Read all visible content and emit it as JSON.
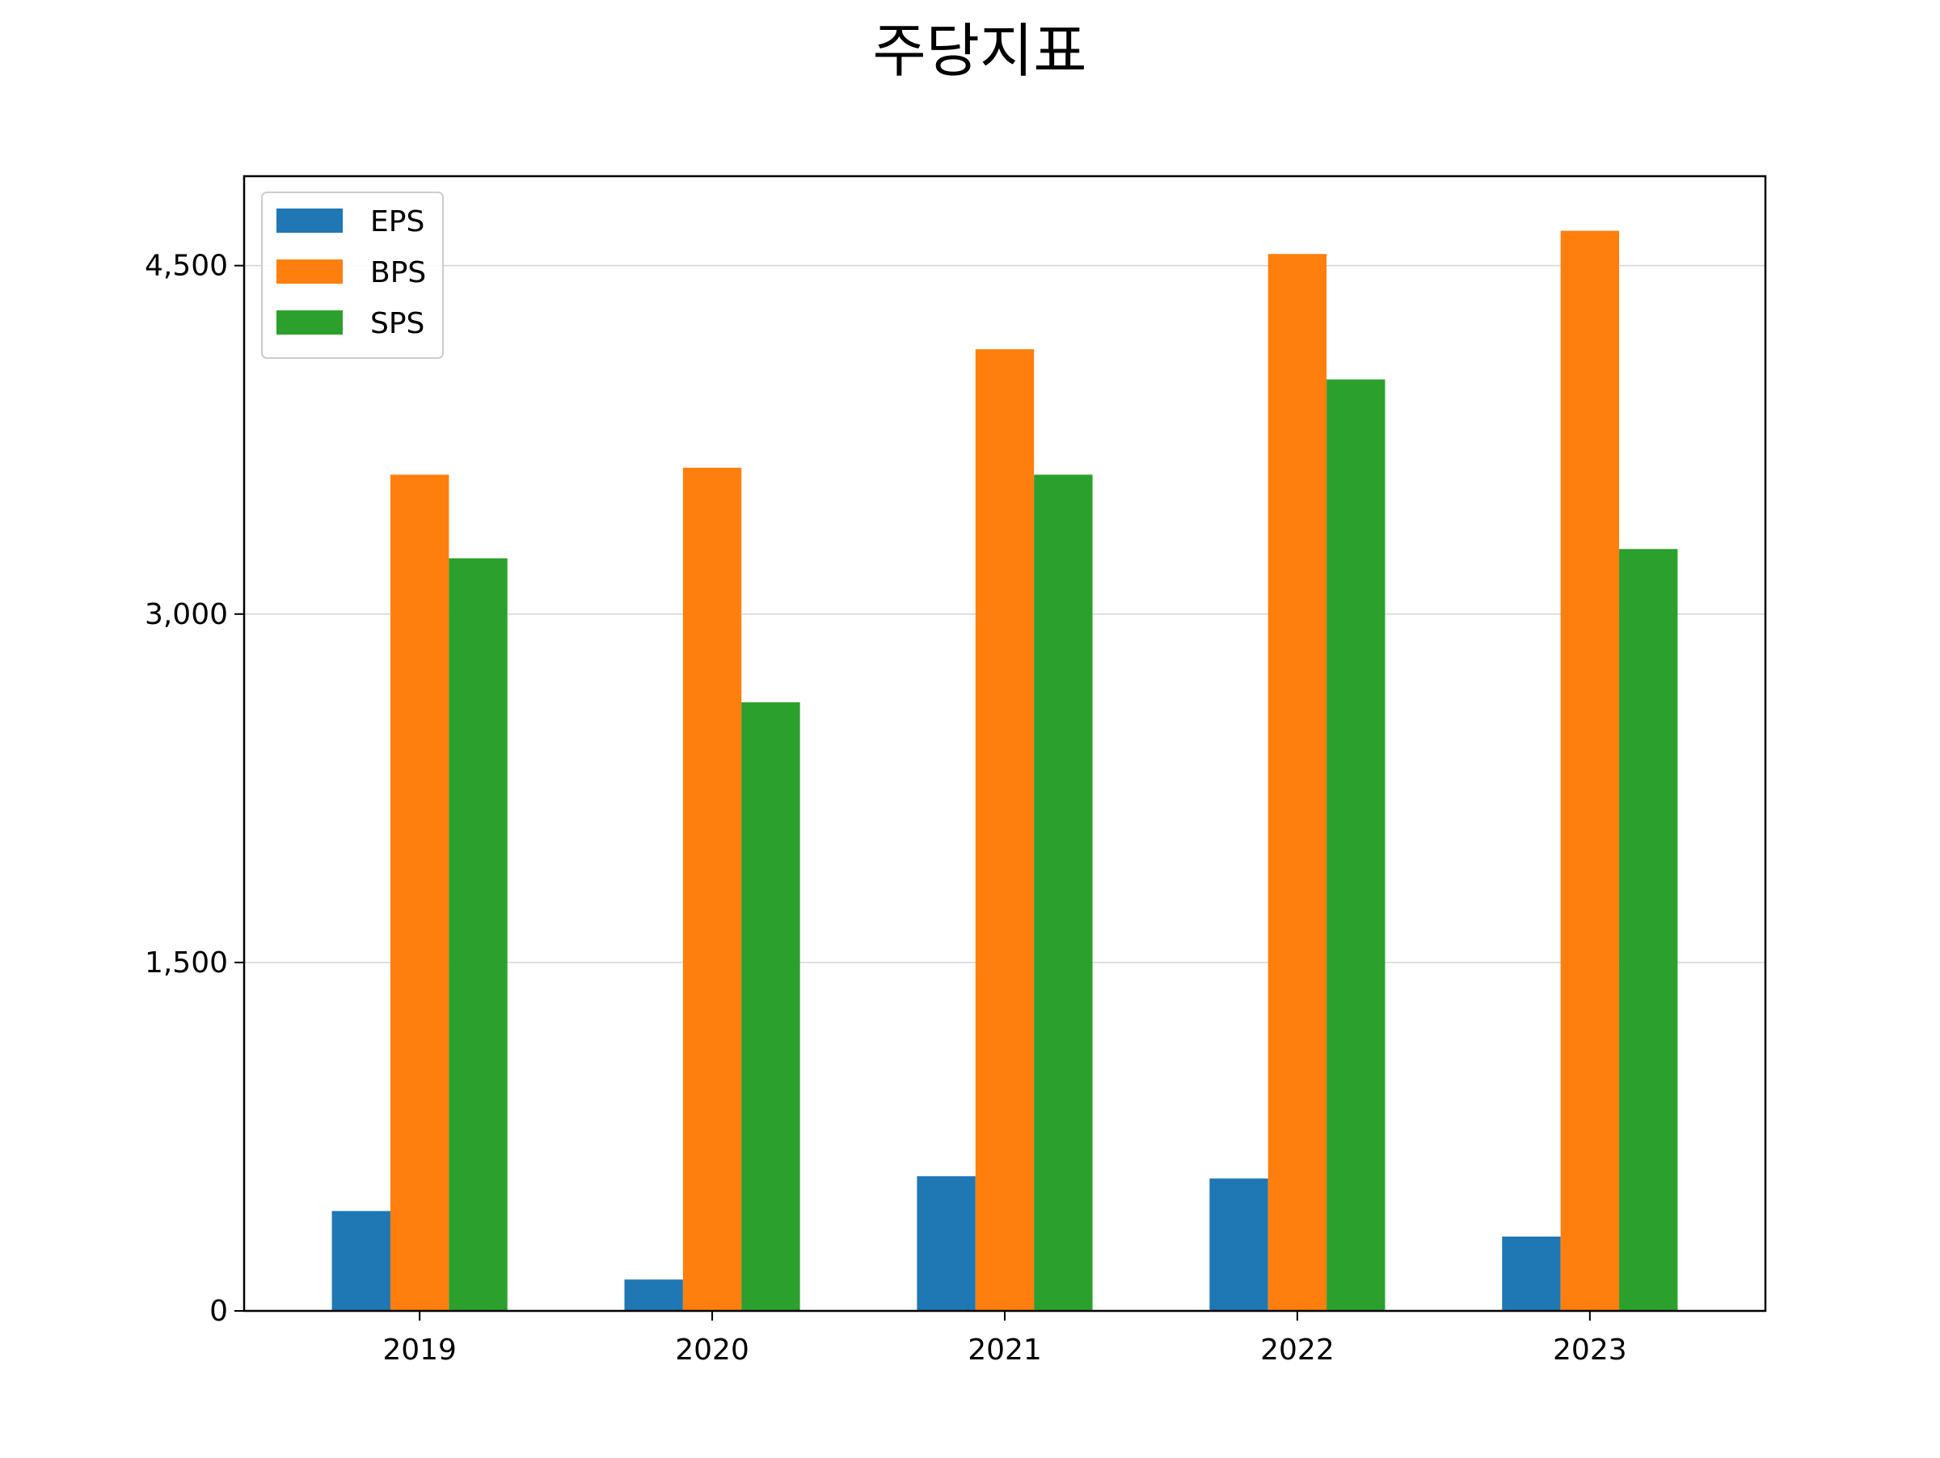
{
  "chart_data": {
    "type": "bar",
    "title": "주당지표",
    "xlabel": "",
    "ylabel": "",
    "categories": [
      "2019",
      "2020",
      "2021",
      "2022",
      "2023"
    ],
    "series": [
      {
        "name": "EPS",
        "color": "#1f77b4",
        "values": [
          430,
          135,
          580,
          570,
          320
        ]
      },
      {
        "name": "BPS",
        "color": "#ff7f0e",
        "values": [
          3600,
          3630,
          4140,
          4550,
          4650
        ]
      },
      {
        "name": "SPS",
        "color": "#2ca02c",
        "values": [
          3240,
          2620,
          3600,
          4010,
          3280
        ]
      }
    ],
    "ylim": [
      0,
      4885
    ],
    "yticks": [
      0,
      1500,
      3000,
      4500
    ],
    "ytick_labels": [
      "0",
      "1,500",
      "3,000",
      "4,500"
    ],
    "grid": {
      "axis": "y",
      "color": "#d3d3d3"
    },
    "legend": {
      "position": "top-left",
      "entries": [
        "EPS",
        "BPS",
        "SPS"
      ]
    }
  }
}
